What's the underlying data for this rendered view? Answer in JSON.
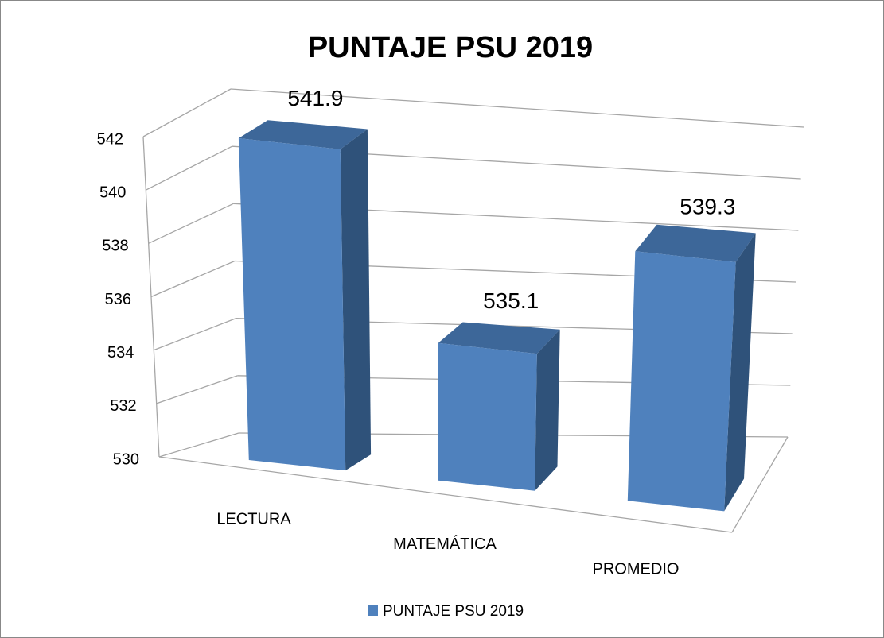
{
  "chart_data": {
    "type": "bar3d",
    "title": "PUNTAJE PSU 2019",
    "categories": [
      "LECTURA",
      "MATEMÁTICA",
      "PROMEDIO"
    ],
    "series": [
      {
        "name": "PUNTAJE PSU 2019",
        "color": "#4f81bd",
        "values": [
          541.9,
          535.1,
          539.3
        ]
      }
    ],
    "ylim": [
      530,
      542
    ],
    "yticks": [
      530,
      532,
      534,
      536,
      538,
      540,
      542
    ],
    "grid": true,
    "legend": "bottom"
  }
}
